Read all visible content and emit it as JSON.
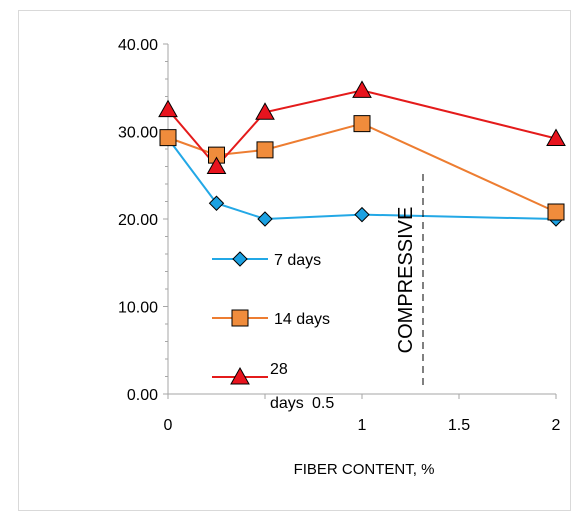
{
  "chart_data": {
    "type": "line",
    "title": "",
    "xlabel": "FIBER CONTENT, %",
    "ylabel": "COMPRESSIVE",
    "x_ticks": [
      {
        "value": 0,
        "label": "0"
      },
      {
        "value": 1,
        "label": "1"
      },
      {
        "value": 1.5,
        "label": "1.5"
      },
      {
        "value": 2,
        "label": "2"
      }
    ],
    "x_tick_stray": "0.5",
    "y_ticks": [
      "0.00",
      "10.00",
      "20.00",
      "30.00",
      "40.00"
    ],
    "xlim": [
      0,
      2
    ],
    "ylim": [
      0,
      40
    ],
    "grid": false,
    "series": [
      {
        "name": "7 days",
        "color": "#1ba1e2",
        "line_color": "#23a8e6",
        "marker": "diamond",
        "points": [
          [
            0,
            29.2
          ],
          [
            0.25,
            21.8
          ],
          [
            0.5,
            20.0
          ],
          [
            1.0,
            20.5
          ],
          [
            2.0,
            20.0
          ]
        ]
      },
      {
        "name": "14 days",
        "color": "#f08c3c",
        "line_color": "#ed7d31",
        "marker": "square",
        "points": [
          [
            0,
            29.3
          ],
          [
            0.25,
            27.3
          ],
          [
            0.5,
            27.9
          ],
          [
            1.0,
            30.9
          ],
          [
            2.0,
            20.8
          ]
        ]
      },
      {
        "name": "28 days",
        "legend_lines": [
          "28",
          "days"
        ],
        "color": "#e8141e",
        "line_color": "#e41b1b",
        "marker": "triangle",
        "points": [
          [
            0,
            32.5
          ],
          [
            0.25,
            26.0
          ],
          [
            0.5,
            32.2
          ],
          [
            1.0,
            34.7
          ],
          [
            2.0,
            29.2
          ]
        ]
      }
    ]
  }
}
